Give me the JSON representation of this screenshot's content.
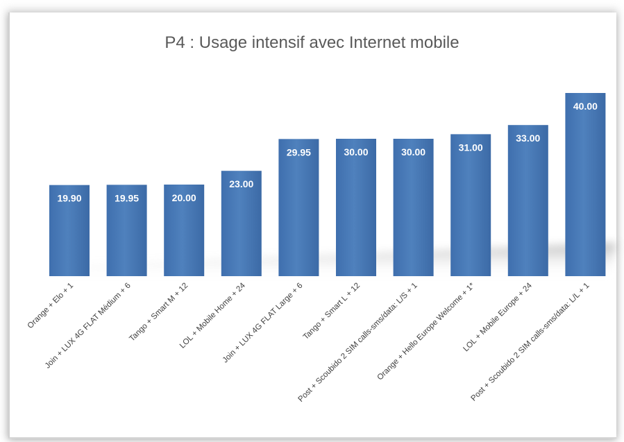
{
  "chart_data": {
    "type": "bar",
    "title": "P4 : Usage intensif avec Internet mobile",
    "categories": [
      "Orange + Elo + 1",
      "Join + LUX 4G FLAT Médium  + 6",
      "Tango + Smart M + 12",
      "LOL + Mobile Home + 24",
      "Join + LUX 4G FLAT Large + 6",
      "Tango + Smart L + 12",
      "Post + Scoubido 2 SIM calls-sms/data: L/S + 1",
      "Orange + Hello Europe Welcome + 1*",
      "LOL + Mobile Europe + 24",
      "Post + Scoubido 2 SIM calls-sms/data: L/L + 1"
    ],
    "values": [
      19.9,
      19.95,
      20.0,
      23.0,
      29.95,
      30.0,
      30.0,
      31.0,
      33.0,
      40.0
    ],
    "value_labels": [
      "19.90",
      "19.95",
      "20.00",
      "23.00",
      "29.95",
      "30.00",
      "30.00",
      "31.00",
      "33.00",
      "40.00"
    ],
    "xlabel": "",
    "ylabel": "",
    "grid": false,
    "legend": "none",
    "bar_color": "#4f81bd"
  }
}
